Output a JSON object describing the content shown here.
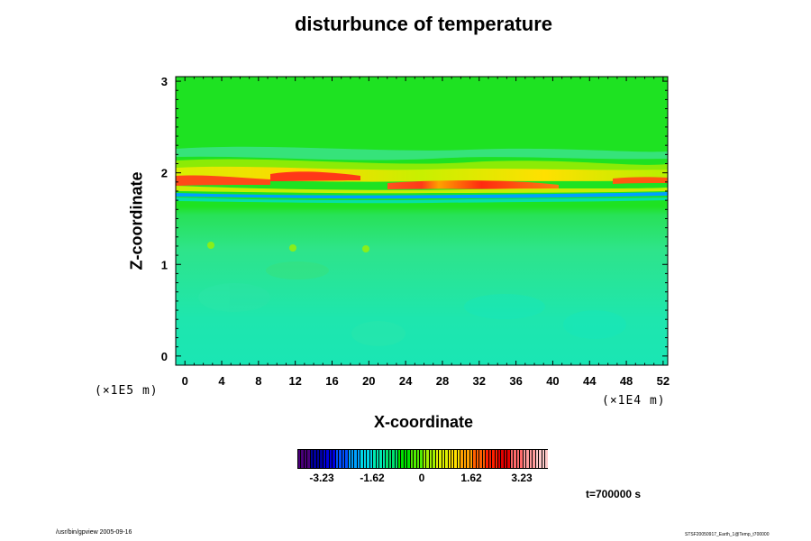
{
  "chart_data": {
    "type": "heatmap",
    "title": "disturbunce of temperature",
    "xlabel": "X-coordinate",
    "ylabel": "Z-coordinate",
    "x_unit": "(×1E4 m)",
    "y_unit": "(×1E5 m)",
    "xlim": [
      -1,
      52.5
    ],
    "ylim": [
      -0.1,
      3.05
    ],
    "x_ticks": [
      "0",
      "4",
      "8",
      "12",
      "16",
      "20",
      "24",
      "28",
      "32",
      "36",
      "40",
      "44",
      "48",
      "52"
    ],
    "y_ticks": [
      "0",
      "1",
      "2",
      "3"
    ],
    "colorbar": {
      "ticks": [
        "-3.23",
        "-1.62",
        "0",
        "1.62",
        "3.23"
      ],
      "colors": [
        "#4a007a",
        "#0000a0",
        "#0000e0",
        "#0050ff",
        "#00a0ff",
        "#00d8e8",
        "#00e8b0",
        "#00e070",
        "#00e000",
        "#50ec00",
        "#a0f000",
        "#e0f000",
        "#ffe000",
        "#ffa000",
        "#ff6000",
        "#ff2000",
        "#e00000",
        "#ff6a6a",
        "#ff9a9a",
        "#ffc8c8"
      ]
    },
    "field_description": "background near 0 (green); 0.0-1.6: slightly negative (cyan-green); 1.7-2.2: banded oscillating layer with positive maxima (~3.23) near z=1.9 and negative minimum near z=1.78"
  },
  "annotations": {
    "time": "t=700000 s",
    "footer_left": "/usr/bin/gpview 2005-09-16",
    "footer_right": "STSF20050917_Earth_1@Temp_t700000"
  }
}
